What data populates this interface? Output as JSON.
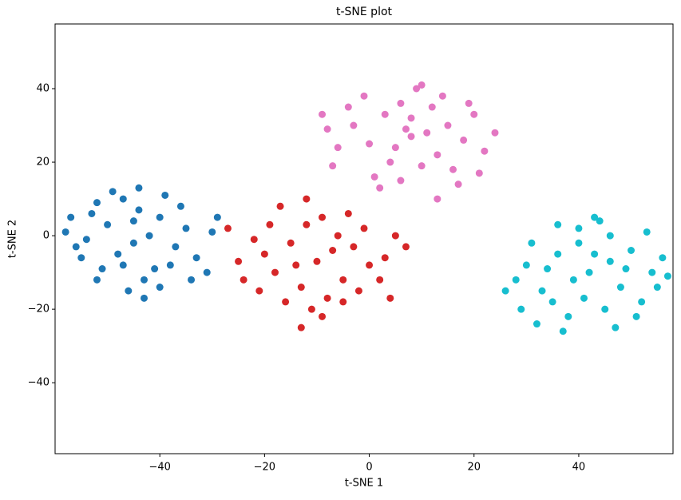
{
  "chart_data": {
    "type": "scatter",
    "title": "t-SNE plot",
    "x_label": "t-SNE 1",
    "y_label": "t-SNE 2",
    "xlim": [
      -60,
      58
    ],
    "ylim": [
      -59.3,
      57.6
    ],
    "xticks": [
      {
        "value": -40,
        "label": "−40"
      },
      {
        "value": -20,
        "label": "−20"
      },
      0,
      20,
      40
    ],
    "yticks": [
      {
        "value": -40,
        "label": "−40"
      },
      {
        "value": -20,
        "label": "−20"
      },
      0,
      20,
      40
    ],
    "series": [
      {
        "color": "#1f77b4",
        "x": [
          -45,
          -50,
          -40,
          -55,
          -38,
          -47,
          -43,
          -52,
          -35,
          -58,
          -48,
          -42,
          -44,
          -53,
          -37,
          -46,
          -33,
          -56,
          -41,
          -49,
          -39,
          -30,
          -51,
          -45,
          -36,
          -54,
          -43,
          -31,
          -57,
          -47,
          -40,
          -34,
          -44,
          -52,
          -29
        ],
        "values": [
          -2,
          3,
          5,
          -6,
          -8,
          10,
          -12,
          -12,
          2,
          1,
          -5,
          0,
          7,
          6,
          -3,
          -15,
          -6,
          -3,
          -9,
          12,
          11,
          1,
          -9,
          4,
          8,
          -1,
          -17,
          -10,
          5,
          -8,
          -14,
          -12,
          13,
          9,
          5
        ]
      },
      {
        "color": "#d62728",
        "x": [
          -10,
          -15,
          -5,
          -18,
          -3,
          -12,
          -8,
          -20,
          0,
          -13,
          -6,
          -22,
          -2,
          -16,
          -9,
          3,
          -24,
          -11,
          -4,
          -19,
          2,
          -14,
          -7,
          -25,
          5,
          -17,
          -1,
          -21,
          -12,
          4,
          -9,
          -27,
          7,
          -5,
          -13
        ],
        "values": [
          -7,
          -2,
          -12,
          -10,
          -3,
          3,
          -17,
          -5,
          -8,
          -14,
          0,
          -1,
          -15,
          -18,
          5,
          -6,
          -12,
          -20,
          6,
          3,
          -12,
          -8,
          -4,
          -7,
          0,
          8,
          2,
          -15,
          10,
          -17,
          -22,
          2,
          -3,
          -18,
          -25
        ]
      },
      {
        "color": "#e377c2",
        "x": [
          8,
          3,
          13,
          0,
          15,
          6,
          10,
          -3,
          18,
          4,
          12,
          -6,
          20,
          7,
          1,
          16,
          -4,
          9,
          22,
          -8,
          14,
          5,
          11,
          -1,
          24,
          2,
          17,
          -7,
          19,
          8,
          21,
          -9,
          13,
          6,
          10
        ],
        "values": [
          27,
          33,
          22,
          25,
          30,
          36,
          19,
          30,
          26,
          20,
          35,
          24,
          33,
          29,
          16,
          18,
          35,
          40,
          23,
          29,
          38,
          24,
          28,
          38,
          28,
          13,
          14,
          19,
          36,
          32,
          17,
          33,
          10,
          15,
          41
        ]
      },
      {
        "color": "#17becf",
        "x": [
          42,
          36,
          48,
          33,
          50,
          40,
          45,
          30,
          54,
          38,
          46,
          28,
          52,
          43,
          35,
          56,
          39,
          47,
          31,
          44,
          26,
          53,
          37,
          49,
          41,
          34,
          55,
          43,
          29,
          51,
          57,
          40,
          32,
          46,
          36
        ],
        "values": [
          -10,
          -5,
          -14,
          -15,
          -4,
          2,
          -20,
          -8,
          -10,
          -22,
          0,
          -12,
          -18,
          -5,
          -18,
          -6,
          -12,
          -25,
          -2,
          4,
          -15,
          1,
          -26,
          -9,
          -17,
          -9,
          -14,
          5,
          -20,
          -22,
          -11,
          -2,
          -24,
          -7,
          3
        ]
      }
    ]
  }
}
